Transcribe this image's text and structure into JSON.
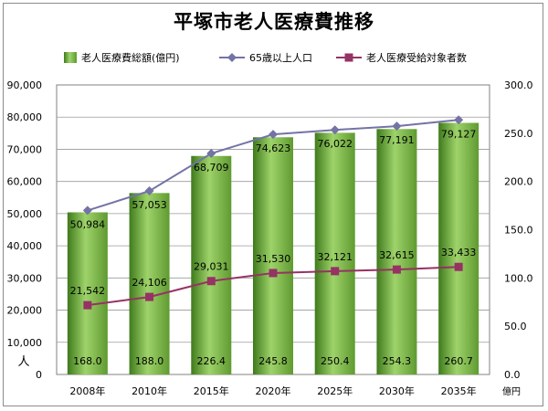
{
  "chart_data": {
    "type": "bar",
    "title": "平塚市老人医療費推移",
    "categories": [
      "2008年",
      "2010年",
      "2015年",
      "2020年",
      "2025年",
      "2030年",
      "2035年"
    ],
    "series": [
      {
        "name": "老人医療費総額(億円)",
        "type": "bar",
        "axis": "right",
        "values": [
          168.0,
          188.0,
          226.4,
          245.8,
          250.4,
          254.3,
          260.7
        ],
        "labels": [
          "168.0",
          "188.0",
          "226.4",
          "245.8",
          "250.4",
          "254.3",
          "260.7"
        ],
        "color": "#6aa83a"
      },
      {
        "name": "65歳以上人口",
        "type": "line",
        "axis": "left",
        "values": [
          50984,
          57053,
          68709,
          74623,
          76022,
          77191,
          79127
        ],
        "labels": [
          "50,984",
          "57,053",
          "68,709",
          "74,623",
          "76,022",
          "77,191",
          "79,127"
        ],
        "color": "#7373a6"
      },
      {
        "name": "老人医療受給対象者数",
        "type": "line",
        "axis": "left",
        "values": [
          21542,
          24106,
          29031,
          31530,
          32121,
          32615,
          33433
        ],
        "labels": [
          "21,542",
          "24,106",
          "29,031",
          "31,530",
          "32,121",
          "32,615",
          "33,433"
        ],
        "color": "#963264"
      }
    ],
    "y_left": {
      "range": [
        0,
        90000
      ],
      "ticks": [
        "0",
        "10,000",
        "20,000",
        "30,000",
        "40,000",
        "50,000",
        "60,000",
        "70,000",
        "80,000",
        "90,000"
      ],
      "unit": "人"
    },
    "y_right": {
      "range": [
        0,
        300
      ],
      "ticks": [
        "0.0",
        "50.0",
        "100.0",
        "150.0",
        "200.0",
        "250.0",
        "300.0"
      ],
      "unit": "億円"
    },
    "grid": true,
    "legend": "top"
  }
}
